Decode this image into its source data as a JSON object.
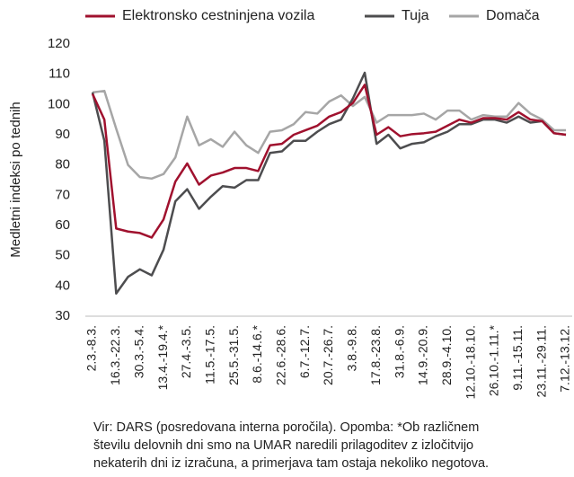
{
  "chart_data": {
    "type": "line",
    "y_label": "Medletni indeksi po tednih",
    "categories": [
      "2.3.-8.3.",
      null,
      "16.3.-22.3.",
      null,
      "30.3.-5.4.",
      null,
      "13.4.-19.4.*",
      null,
      "27.4.-3.5.",
      null,
      "11.5.-17.5.",
      null,
      "25.5.-31.5.",
      null,
      "8.6.-14.6.*",
      null,
      "22.6.-28.6.",
      null,
      "6.7.-12.7.",
      null,
      "20.7.-26.7.",
      null,
      "3.8.-9.8.",
      null,
      "17.8.-23.8.",
      null,
      "31.8.-6.9.",
      null,
      "14.9.-20.9.",
      null,
      "28.9.-4.10.",
      null,
      "12.10.-18.10.",
      null,
      "26.10.-1.11.*",
      null,
      "9.11.-15.11.",
      null,
      "23.11.-29.11.",
      null,
      "7.12.-13.12."
    ],
    "series": [
      {
        "name": "Elektronsko cestninjena vozila",
        "color": "#a0112e",
        "values": [
          103.5,
          95,
          59,
          58,
          57.5,
          56,
          62,
          74.5,
          80.5,
          73.5,
          76.5,
          77.5,
          79,
          79,
          78,
          86.5,
          87,
          90,
          91.5,
          93,
          96,
          97.5,
          100.5,
          106.5,
          90,
          92.5,
          89.5,
          90.2,
          90.5,
          91,
          93,
          95,
          94,
          95.5,
          95.5,
          95,
          97.5,
          95,
          94.5,
          90.5,
          90
        ]
      },
      {
        "name": "Tuja",
        "color": "#4d4d4f",
        "values": [
          104,
          88,
          37.5,
          43,
          45.5,
          43.5,
          52,
          68,
          72,
          65.5,
          69.5,
          73,
          72.5,
          75,
          75,
          84,
          84.5,
          88,
          88,
          91,
          93.5,
          95,
          102,
          110.5,
          87,
          90,
          85.5,
          87,
          87.5,
          89.5,
          91,
          93.5,
          93.5,
          95,
          95,
          94,
          96,
          94,
          94.5,
          90.5,
          90
        ]
      },
      {
        "name": "Domača",
        "color": "#a6a6a6",
        "values": [
          104,
          104.5,
          92,
          80,
          76,
          75.5,
          77,
          82.5,
          96,
          86.5,
          88.5,
          86,
          91,
          86.5,
          84,
          91,
          91.5,
          93.5,
          97.5,
          97,
          101,
          103,
          99.5,
          102.5,
          94,
          96.5,
          96.5,
          96.5,
          97,
          95,
          98,
          98,
          95,
          96.5,
          96,
          96,
          100.5,
          97,
          95,
          91.5,
          91.5
        ]
      }
    ],
    "ylim": [
      30,
      120
    ],
    "yticks": [
      30,
      40,
      50,
      60,
      70,
      80,
      90,
      100,
      110,
      120
    ],
    "grid": false,
    "note": [
      "Vir: DARS (posredovana interna poročila). Opomba: *Ob različnem",
      "številu delovnih dni smo na UMAR naredili prilagoditev z izločitvijo",
      "nekaterih dni iz izračuna, a primerjava tam ostaja nekoliko negotova."
    ]
  }
}
